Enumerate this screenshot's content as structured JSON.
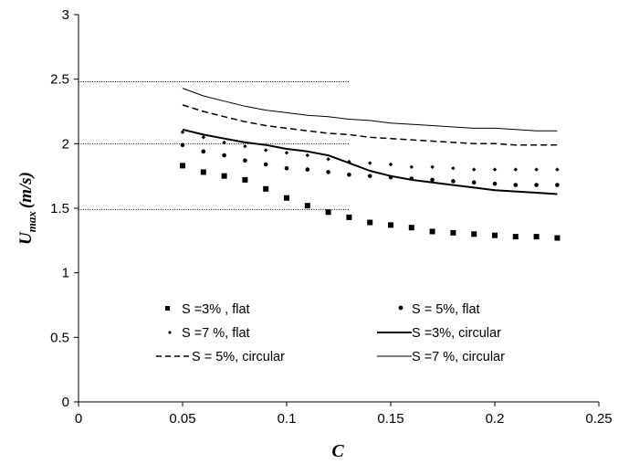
{
  "chart_data": {
    "type": "scatter",
    "xlabel": "C",
    "ylabel": "U",
    "ylabel_sub": "max",
    "ylabel_unit": "(m/s)",
    "xlim": [
      0,
      0.25
    ],
    "ylim": [
      0,
      3
    ],
    "x_ticks": [
      0,
      0.05,
      0.1,
      0.15,
      0.2,
      0.25
    ],
    "x_tick_labels": [
      "0",
      "0.05",
      "0.1",
      "0.15",
      "0.2",
      "0.25"
    ],
    "y_ticks": [
      0,
      0.5,
      1,
      1.5,
      2,
      2.5,
      3
    ],
    "y_tick_labels": [
      "0",
      "0.5",
      "1",
      "1.5",
      "2",
      "2.5",
      "3"
    ],
    "grid": false,
    "reference_lines": [
      {
        "y": 2.48,
        "x_range": [
          0,
          0.13
        ]
      },
      {
        "y": 2.0,
        "x_range": [
          0,
          0.13
        ]
      },
      {
        "y": 1.49,
        "x_range": [
          0,
          0.13
        ]
      }
    ],
    "legend_position": "bottom-inside",
    "series": [
      {
        "name": "S =3% , flat",
        "style": "square-marker",
        "x": [
          0.05,
          0.06,
          0.07,
          0.08,
          0.09,
          0.1,
          0.11,
          0.12,
          0.13,
          0.14,
          0.15,
          0.16,
          0.17,
          0.18,
          0.19,
          0.2,
          0.21,
          0.22,
          0.23
        ],
        "y": [
          1.83,
          1.78,
          1.75,
          1.72,
          1.65,
          1.58,
          1.52,
          1.47,
          1.43,
          1.39,
          1.37,
          1.35,
          1.32,
          1.31,
          1.3,
          1.29,
          1.28,
          1.28,
          1.27
        ]
      },
      {
        "name": "S = 5%, flat",
        "style": "round-marker",
        "x": [
          0.05,
          0.06,
          0.07,
          0.08,
          0.09,
          0.1,
          0.11,
          0.12,
          0.13,
          0.14,
          0.15,
          0.16,
          0.17,
          0.18,
          0.19,
          0.2,
          0.21,
          0.22,
          0.23
        ],
        "y": [
          1.99,
          1.94,
          1.91,
          1.87,
          1.84,
          1.81,
          1.8,
          1.78,
          1.76,
          1.75,
          1.74,
          1.73,
          1.72,
          1.71,
          1.7,
          1.69,
          1.68,
          1.68,
          1.68
        ]
      },
      {
        "name": "S =7 %, flat",
        "style": "diamond-marker",
        "x": [
          0.05,
          0.06,
          0.07,
          0.08,
          0.09,
          0.1,
          0.11,
          0.12,
          0.13,
          0.14,
          0.15,
          0.16,
          0.17,
          0.18,
          0.19,
          0.2,
          0.21,
          0.22,
          0.23
        ],
        "y": [
          2.09,
          2.05,
          2.01,
          1.98,
          1.95,
          1.93,
          1.91,
          1.88,
          1.86,
          1.85,
          1.84,
          1.82,
          1.82,
          1.81,
          1.8,
          1.8,
          1.8,
          1.8,
          1.8
        ]
      },
      {
        "name": "S =3%, circular",
        "style": "solid-thick",
        "x": [
          0.05,
          0.06,
          0.07,
          0.08,
          0.09,
          0.1,
          0.11,
          0.12,
          0.13,
          0.14,
          0.15,
          0.16,
          0.17,
          0.18,
          0.19,
          0.2,
          0.21,
          0.22,
          0.23
        ],
        "y": [
          2.11,
          2.07,
          2.04,
          2.01,
          1.99,
          1.96,
          1.94,
          1.91,
          1.85,
          1.79,
          1.75,
          1.72,
          1.7,
          1.68,
          1.66,
          1.64,
          1.63,
          1.62,
          1.61
        ]
      },
      {
        "name": "S = 5%, circular",
        "style": "dashed",
        "x": [
          0.05,
          0.06,
          0.07,
          0.08,
          0.09,
          0.1,
          0.11,
          0.12,
          0.13,
          0.14,
          0.15,
          0.16,
          0.17,
          0.18,
          0.19,
          0.2,
          0.21,
          0.22,
          0.23
        ],
        "y": [
          2.3,
          2.25,
          2.21,
          2.17,
          2.14,
          2.12,
          2.1,
          2.08,
          2.07,
          2.05,
          2.04,
          2.03,
          2.02,
          2.01,
          2.0,
          2.0,
          1.99,
          1.99,
          1.99
        ]
      },
      {
        "name": "S =7 %, circular",
        "style": "solid-thin",
        "x": [
          0.05,
          0.06,
          0.07,
          0.08,
          0.09,
          0.1,
          0.11,
          0.12,
          0.13,
          0.14,
          0.15,
          0.16,
          0.17,
          0.18,
          0.19,
          0.2,
          0.21,
          0.22,
          0.23
        ],
        "y": [
          2.43,
          2.37,
          2.33,
          2.29,
          2.26,
          2.24,
          2.22,
          2.21,
          2.19,
          2.18,
          2.16,
          2.15,
          2.14,
          2.13,
          2.12,
          2.12,
          2.11,
          2.1,
          2.1
        ]
      }
    ]
  }
}
